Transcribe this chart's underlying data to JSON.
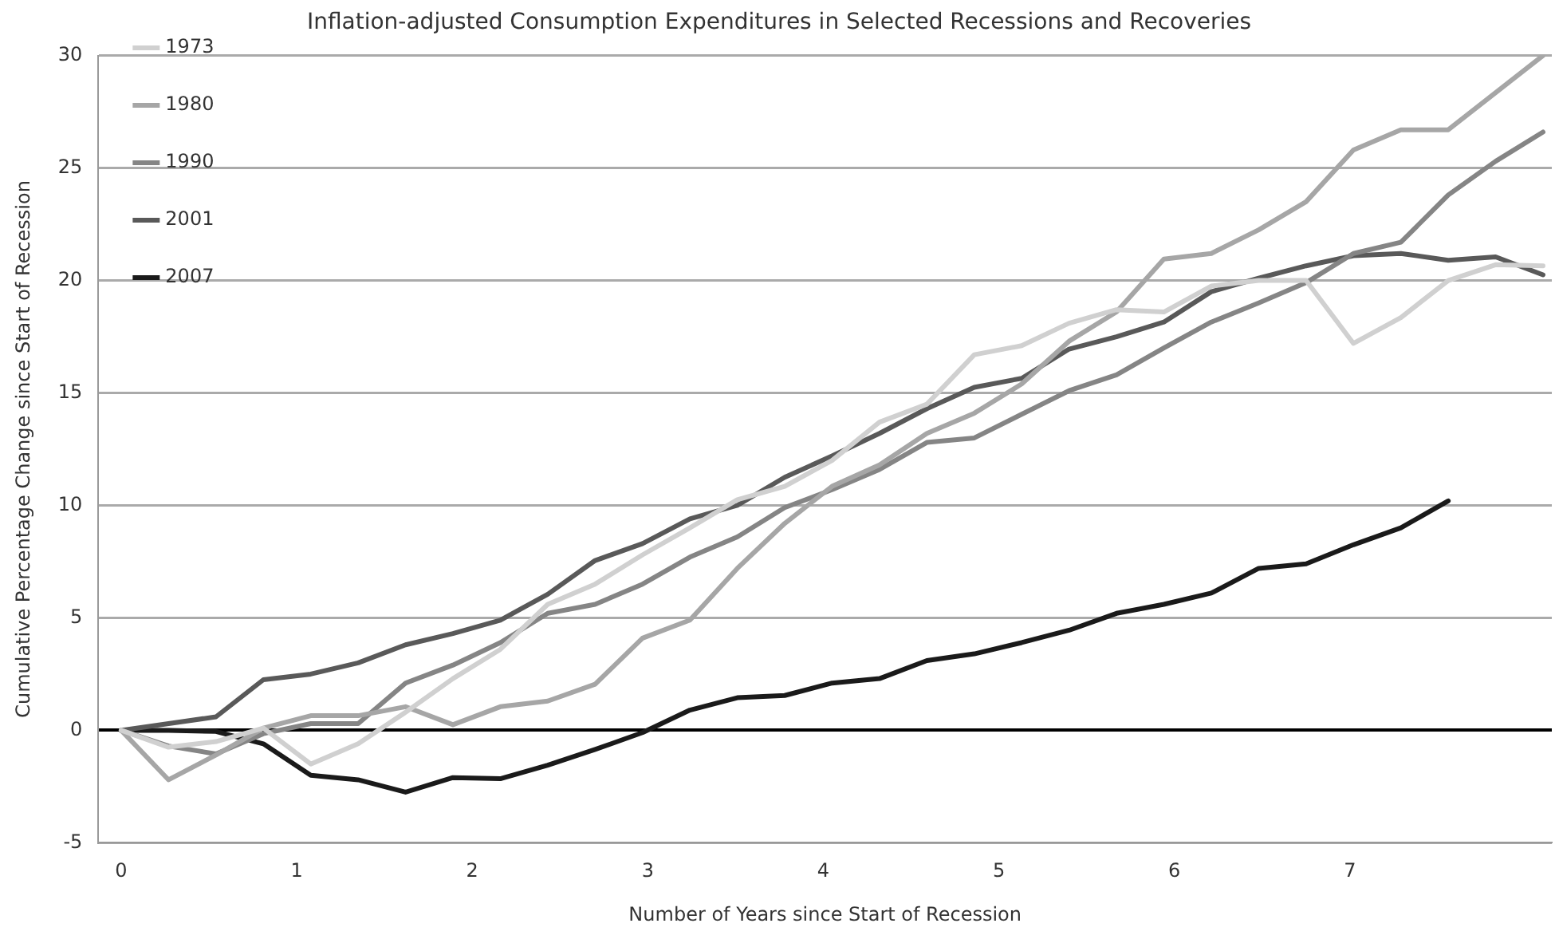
{
  "chart_data": {
    "type": "line",
    "title": "Inflation-adjusted Consumption Expenditures in Selected Recessions and Recoveries",
    "xlabel": "Number of Years since Start of Recession",
    "ylabel": "Cumulative Percentage Change since Start of Recession",
    "x": [
      0,
      0.27,
      0.54,
      0.81,
      1.08,
      1.35,
      1.62,
      1.89,
      2.16,
      2.43,
      2.7,
      2.97,
      3.24,
      3.51,
      3.78,
      4.05,
      4.32,
      4.59,
      4.86,
      5.13,
      5.4,
      5.67,
      5.94,
      6.21,
      6.48,
      6.75,
      7.02,
      7.29,
      7.56,
      7.83,
      8.1
    ],
    "xlim": [
      -0.13,
      8.15
    ],
    "xticks": [
      0,
      1,
      2,
      3,
      4,
      5,
      6,
      7
    ],
    "ylim": [
      -5,
      30
    ],
    "yticks": [
      -5,
      0,
      5,
      10,
      15,
      20,
      25,
      30
    ],
    "grid": "y",
    "legend": "top left",
    "marker": "none",
    "line_style": "solid",
    "series": [
      {
        "name": "1973",
        "color": "#d0d0d0",
        "values": [
          0,
          -0.75,
          -0.5,
          0.1,
          -1.5,
          -0.6,
          0.8,
          2.3,
          3.6,
          5.6,
          6.5,
          7.8,
          9.0,
          10.25,
          10.85,
          12.0,
          13.7,
          14.5,
          16.7,
          17.1,
          18.1,
          18.7,
          18.6,
          19.75,
          20.0,
          20.0,
          17.2,
          18.35,
          20.0,
          20.7,
          20.65
        ]
      },
      {
        "name": "1980",
        "color": "#a6a6a6",
        "values": [
          0,
          -2.2,
          -1.1,
          0.1,
          0.65,
          0.65,
          1.05,
          0.25,
          1.05,
          1.3,
          2.05,
          4.1,
          4.9,
          7.2,
          9.2,
          10.85,
          11.8,
          13.2,
          14.1,
          15.4,
          17.3,
          18.6,
          20.95,
          21.2,
          22.25,
          23.5,
          25.8,
          26.7,
          26.7,
          28.35,
          30
        ]
      },
      {
        "name": "1990",
        "color": "#858585",
        "values": [
          0,
          -0.7,
          -1.05,
          -0.15,
          0.3,
          0.3,
          2.1,
          2.9,
          3.9,
          5.2,
          5.6,
          6.5,
          7.7,
          8.6,
          9.9,
          10.7,
          11.6,
          12.8,
          13.0,
          14.05,
          15.1,
          15.8,
          17.0,
          18.15,
          19.0,
          19.9,
          21.2,
          21.7,
          23.8,
          25.3,
          26.6
        ]
      },
      {
        "name": "2001",
        "color": "#595959",
        "values": [
          0,
          0.3,
          0.6,
          2.25,
          2.5,
          3.0,
          3.8,
          4.3,
          4.9,
          6.05,
          7.55,
          8.3,
          9.4,
          10.0,
          11.25,
          12.2,
          13.2,
          14.3,
          15.25,
          15.65,
          16.95,
          17.5,
          18.15,
          19.5,
          20.1,
          20.65,
          21.1,
          21.2,
          20.9,
          21.05,
          20.25
        ]
      },
      {
        "name": "2007",
        "color": "#1a1a1a",
        "values": [
          0,
          0,
          -0.05,
          -0.6,
          -2.0,
          -2.2,
          -2.75,
          -2.1,
          -2.15,
          -1.55,
          -0.85,
          -0.1,
          0.9,
          1.45,
          1.55,
          2.1,
          2.3,
          3.1,
          3.4,
          3.9,
          4.45,
          5.2,
          5.6,
          6.1,
          7.2,
          7.4,
          8.25,
          9.0,
          10.2,
          null,
          null
        ]
      }
    ]
  }
}
